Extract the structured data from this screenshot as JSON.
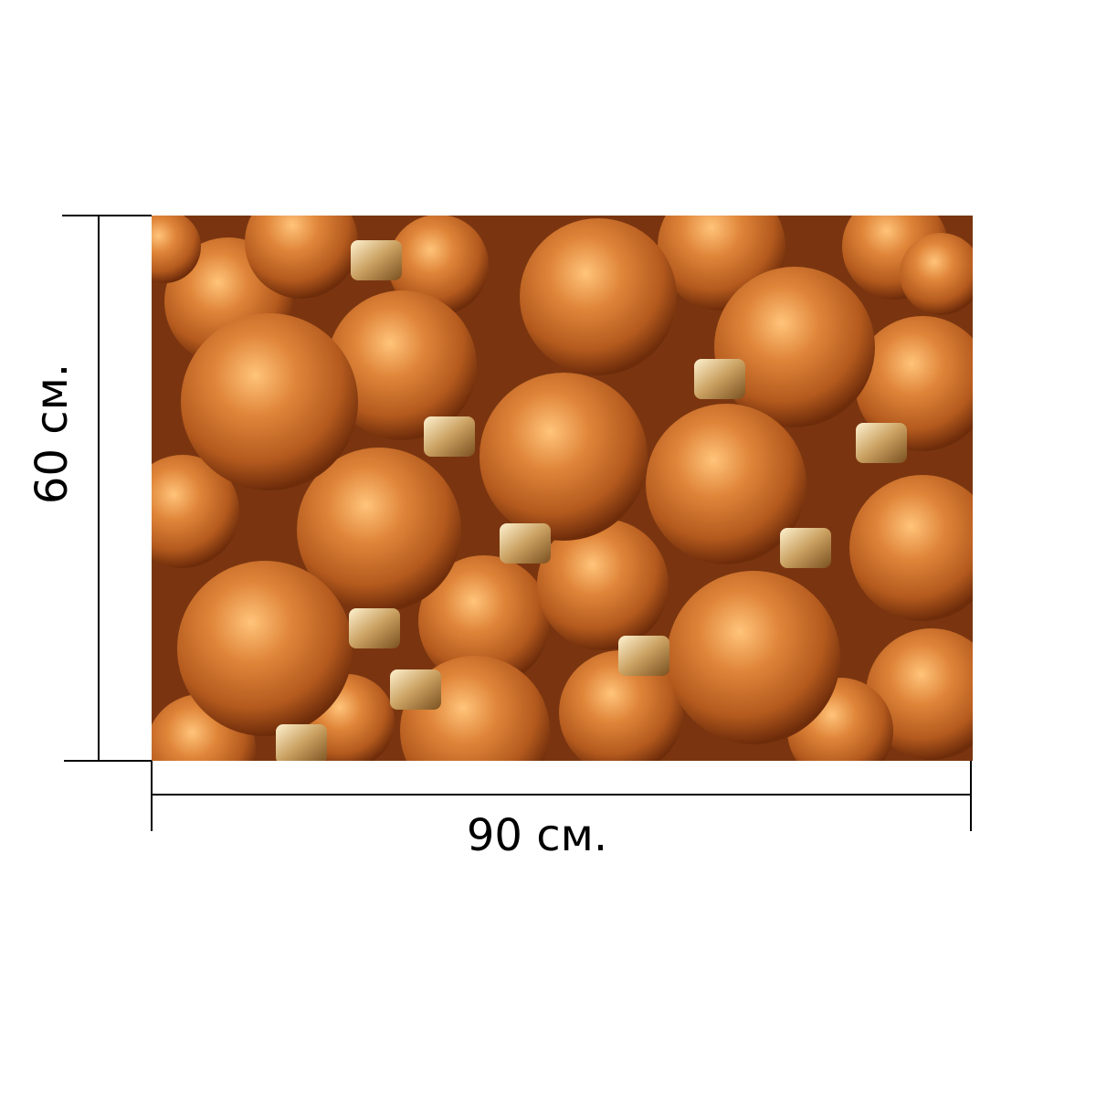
{
  "dimensions": {
    "height": "60 см.",
    "width": "90 см."
  }
}
